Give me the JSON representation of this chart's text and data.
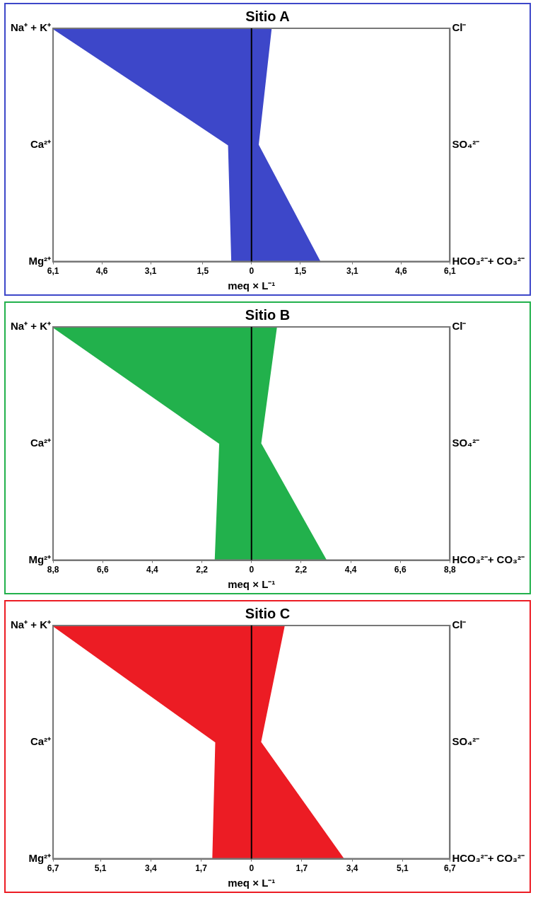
{
  "chart_data": [
    {
      "type": "area",
      "orientation": "horizontal",
      "title": "Sitio A",
      "xlabel": "meq × L⁻¹",
      "categories": [
        "Na⁺ + K⁺",
        "Ca²⁺",
        "Mg²⁺"
      ],
      "y2_categories": [
        "Cl⁻",
        "SO₄²⁻",
        "HCO₃²⁻+ CO₃²⁻"
      ],
      "series": [
        {
          "color": "#3d47c9",
          "values": [
            -6.1,
            -0.7,
            -0.6
          ]
        },
        {
          "color": "#3d47c9",
          "values": [
            0.6,
            0.2,
            2.1
          ]
        }
      ],
      "xlim": [
        -6.1,
        6.1
      ],
      "xticks": [
        {
          "value": -6.1,
          "label": "6,1"
        },
        {
          "value": -4.6,
          "label": "4,6"
        },
        {
          "value": -3.1,
          "label": "3,1"
        },
        {
          "value": -1.5,
          "label": "1,5"
        },
        {
          "value": 0,
          "label": "0"
        },
        {
          "value": 1.5,
          "label": "1,5"
        },
        {
          "value": 3.1,
          "label": "3,1"
        },
        {
          "value": 4.6,
          "label": "4,6"
        },
        {
          "value": 6.1,
          "label": "6,1"
        }
      ],
      "ref_lines": [
        {
          "axis": "x",
          "value": 0,
          "color": "#000000"
        }
      ],
      "grid": false,
      "legend": false
    },
    {
      "type": "area",
      "orientation": "horizontal",
      "title": "Sitio B",
      "xlabel": "meq × L⁻¹",
      "categories": [
        "Na⁺ + K⁺",
        "Ca²⁺",
        "Mg²⁺"
      ],
      "y2_categories": [
        "Cl⁻",
        "SO₄²⁻",
        "HCO₃²⁻+ CO₃²⁻"
      ],
      "series": [
        {
          "color": "#22b14c",
          "values": [
            -8.8,
            -1.4,
            -1.6
          ]
        },
        {
          "color": "#22b14c",
          "values": [
            1.1,
            0.4,
            3.3
          ]
        }
      ],
      "xlim": [
        -8.8,
        8.8
      ],
      "xticks": [
        {
          "value": -8.8,
          "label": "8,8"
        },
        {
          "value": -6.6,
          "label": "6,6"
        },
        {
          "value": -4.4,
          "label": "4,4"
        },
        {
          "value": -2.2,
          "label": "2,2"
        },
        {
          "value": 0,
          "label": "0"
        },
        {
          "value": 2.2,
          "label": "2,2"
        },
        {
          "value": 4.4,
          "label": "4,4"
        },
        {
          "value": 6.6,
          "label": "6,6"
        },
        {
          "value": 8.8,
          "label": "8,8"
        }
      ],
      "ref_lines": [
        {
          "axis": "x",
          "value": 0,
          "color": "#000000"
        }
      ],
      "grid": false,
      "legend": false
    },
    {
      "type": "area",
      "orientation": "horizontal",
      "title": "Sitio C",
      "xlabel": "meq × L⁻¹",
      "categories": [
        "Na⁺ + K⁺",
        "Ca²⁺",
        "Mg²⁺"
      ],
      "y2_categories": [
        "Cl⁻",
        "SO₄²⁻",
        "HCO₃²⁻+ CO₃²⁻"
      ],
      "series": [
        {
          "color": "#ec1c24",
          "values": [
            -6.7,
            -1.2,
            -1.3
          ]
        },
        {
          "color": "#ec1c24",
          "values": [
            1.1,
            0.3,
            3.1
          ]
        }
      ],
      "xlim": [
        -6.7,
        6.7
      ],
      "xticks": [
        {
          "value": -6.7,
          "label": "6,7"
        },
        {
          "value": -5.1,
          "label": "5,1"
        },
        {
          "value": -3.4,
          "label": "3,4"
        },
        {
          "value": -1.7,
          "label": "1,7"
        },
        {
          "value": 0,
          "label": "0"
        },
        {
          "value": 1.7,
          "label": "1,7"
        },
        {
          "value": 3.4,
          "label": "3,4"
        },
        {
          "value": 5.1,
          "label": "5,1"
        },
        {
          "value": 6.7,
          "label": "6,7"
        }
      ],
      "ref_lines": [
        {
          "axis": "x",
          "value": 0,
          "color": "#000000"
        }
      ],
      "grid": false,
      "legend": false
    }
  ]
}
